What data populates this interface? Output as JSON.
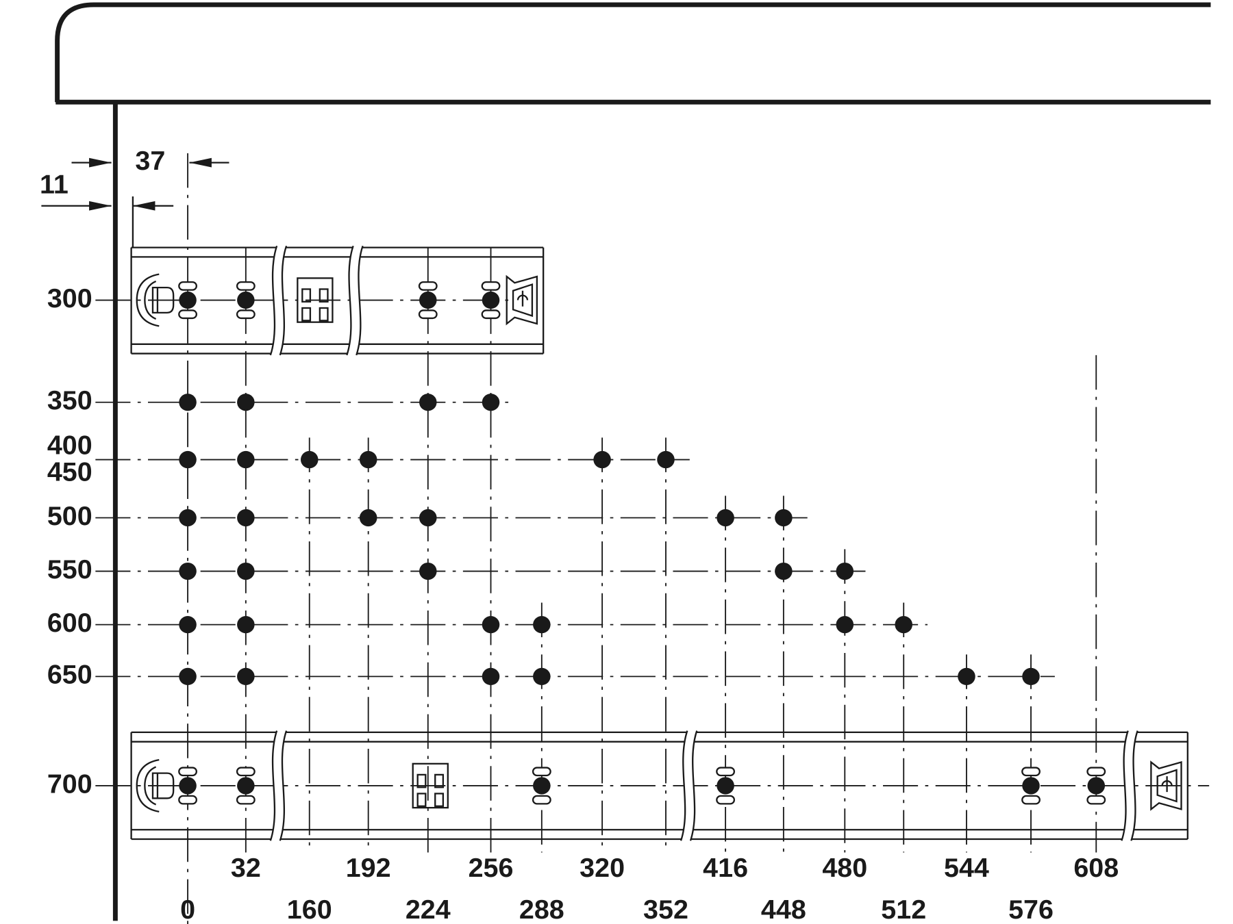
{
  "dimensions": {
    "side_offset": 11,
    "first_hole_offset": 37
  },
  "hole_positions": [
    0,
    32,
    160,
    192,
    224,
    256,
    288,
    320,
    352,
    416,
    448,
    480,
    512,
    544,
    576,
    608
  ],
  "drawer_lengths": [
    {
      "lengths": [
        300
      ],
      "holes": [
        0,
        32,
        224,
        256
      ]
    },
    {
      "lengths": [
        350
      ],
      "holes": [
        0,
        32,
        224,
        256
      ]
    },
    {
      "lengths": [
        400,
        450
      ],
      "holes": [
        0,
        32,
        160,
        192,
        320,
        352
      ]
    },
    {
      "lengths": [
        500
      ],
      "holes": [
        0,
        32,
        192,
        224,
        416,
        448
      ]
    },
    {
      "lengths": [
        550
      ],
      "holes": [
        0,
        32,
        224,
        448,
        480
      ]
    },
    {
      "lengths": [
        600
      ],
      "holes": [
        0,
        32,
        256,
        288,
        480,
        512
      ]
    },
    {
      "lengths": [
        650
      ],
      "holes": [
        0,
        32,
        256,
        288,
        544,
        576
      ]
    },
    {
      "lengths": [
        700
      ],
      "holes": [
        0,
        32,
        288,
        416,
        576,
        608
      ]
    }
  ]
}
